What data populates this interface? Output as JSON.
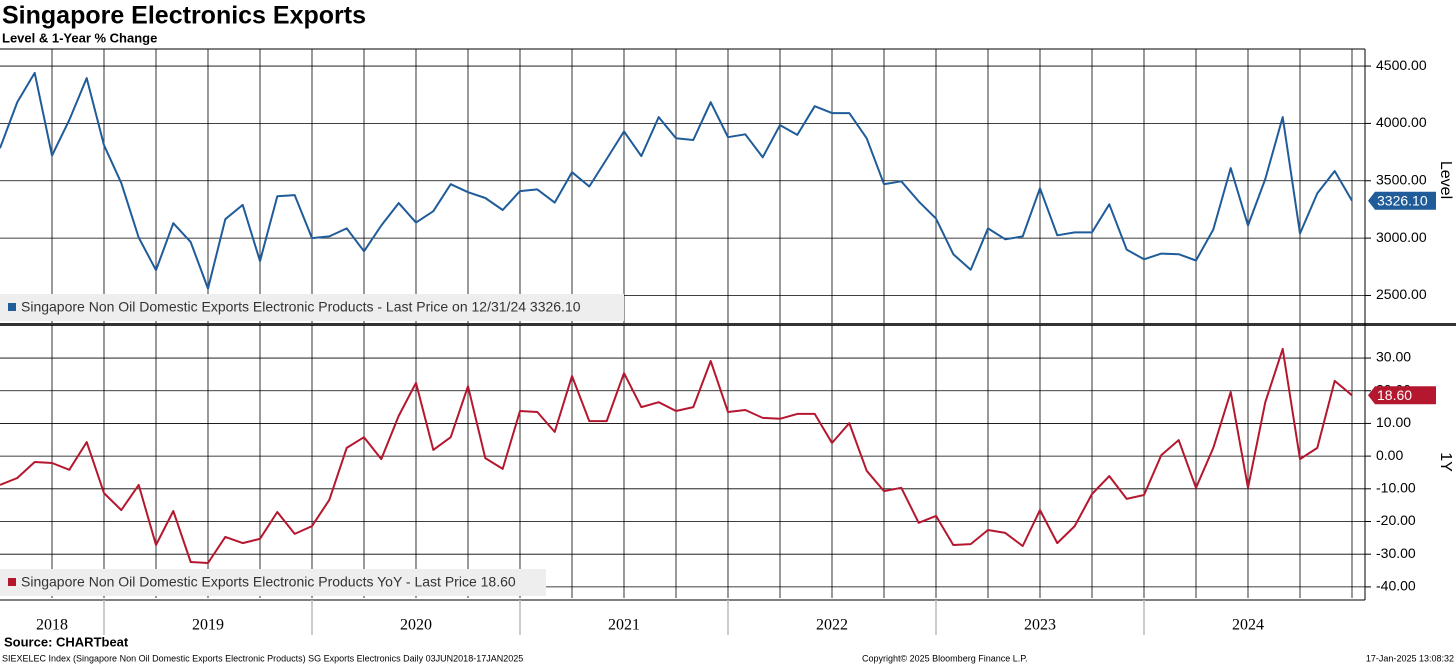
{
  "title": "Singapore Electronics Exports",
  "subtitle": "Level & 1-Year % Change",
  "source": "Source: CHARTbeat",
  "footer_left": "SIEXELEC Index (Singapore Non Oil Domestic Exports Electronic Products) SG Exports Electronics  Daily 03JUN2018-17JAN2025",
  "footer_center": "Copyright© 2025 Bloomberg Finance L.P.",
  "footer_right": "17-Jan-2025 13:08:32",
  "year_labels": [
    "2018",
    "2019",
    "2020",
    "2021",
    "2022",
    "2023",
    "2024"
  ],
  "chart_data": [
    {
      "type": "line",
      "axis_label": "Level",
      "ylim": [
        2260,
        4640
      ],
      "yticks": [
        {
          "value": 2500,
          "label": "2500.00"
        },
        {
          "value": 3000,
          "label": "3000.00"
        },
        {
          "value": 3500,
          "label": "3500.00"
        },
        {
          "value": 4000,
          "label": "4000.00"
        },
        {
          "value": 4500,
          "label": "4500.00"
        }
      ],
      "grid": true,
      "x": [
        "2018-06",
        "2018-07",
        "2018-08",
        "2018-09",
        "2018-10",
        "2018-11",
        "2018-12",
        "2019-01",
        "2019-02",
        "2019-03",
        "2019-04",
        "2019-05",
        "2019-06",
        "2019-07",
        "2019-08",
        "2019-09",
        "2019-10",
        "2019-11",
        "2019-12",
        "2020-01",
        "2020-02",
        "2020-03",
        "2020-04",
        "2020-05",
        "2020-06",
        "2020-07",
        "2020-08",
        "2020-09",
        "2020-10",
        "2020-11",
        "2020-12",
        "2021-01",
        "2021-02",
        "2021-03",
        "2021-04",
        "2021-05",
        "2021-06",
        "2021-07",
        "2021-08",
        "2021-09",
        "2021-10",
        "2021-11",
        "2021-12",
        "2022-01",
        "2022-02",
        "2022-03",
        "2022-04",
        "2022-05",
        "2022-06",
        "2022-07",
        "2022-08",
        "2022-09",
        "2022-10",
        "2022-11",
        "2022-12",
        "2023-01",
        "2023-02",
        "2023-03",
        "2023-04",
        "2023-05",
        "2023-06",
        "2023-07",
        "2023-08",
        "2023-09",
        "2023-10",
        "2023-11",
        "2023-12",
        "2024-01",
        "2024-02",
        "2024-03",
        "2024-04",
        "2024-05",
        "2024-06",
        "2024-07",
        "2024-08",
        "2024-09",
        "2024-10",
        "2024-11",
        "2024-12"
      ],
      "series": [
        {
          "name": "Singapore Non Oil Domestic Exports Electronic Products - Last Price on 12/31/24 3326.10",
          "color": "#1f5c99",
          "values": [
            3784,
            4186,
            4440,
            3720,
            4030,
            4395,
            3810,
            3480,
            3005,
            2720,
            3130,
            2965,
            2560,
            3165,
            3290,
            2800,
            3365,
            3375,
            3000,
            3015,
            3085,
            2885,
            3110,
            3305,
            3135,
            3235,
            3470,
            3400,
            3350,
            3245,
            3410,
            3425,
            3310,
            3575,
            3450,
            3690,
            3930,
            3715,
            4055,
            3870,
            3855,
            4185,
            3880,
            3905,
            3705,
            3985,
            3900,
            4150,
            4090,
            4090,
            3870,
            3470,
            3495,
            3320,
            3170,
            2860,
            2725,
            3085,
            2990,
            3015,
            3435,
            3025,
            3050,
            3050,
            3295,
            2900,
            2815,
            2865,
            2860,
            2805,
            3075,
            3610,
            3110,
            3515,
            4055,
            3040,
            3390,
            3585,
            3326.1
          ],
          "value_labels": [
            null,
            null,
            null,
            null,
            null,
            null,
            null,
            null,
            null,
            null,
            null,
            null,
            null,
            null,
            null,
            null,
            null,
            null,
            null,
            null,
            null,
            null,
            null,
            null,
            null,
            null,
            null,
            null,
            null,
            null,
            null,
            null,
            null,
            null,
            null,
            null,
            null,
            null,
            null,
            null,
            null,
            null,
            null,
            null,
            null,
            null,
            null,
            null,
            null,
            null,
            null,
            null,
            null,
            null,
            null,
            null,
            null,
            null,
            null,
            null,
            null,
            null,
            null,
            null,
            null,
            null,
            null,
            null,
            null,
            null,
            null,
            null,
            null,
            null,
            null,
            null,
            null,
            null,
            "3326.10"
          ]
        }
      ]
    },
    {
      "type": "line",
      "axis_label": "1Y",
      "ylim": [
        -43.4,
        39.8
      ],
      "yticks": [
        {
          "value": -40,
          "label": "-40.00"
        },
        {
          "value": -30,
          "label": "-30.00"
        },
        {
          "value": -20,
          "label": "-20.00"
        },
        {
          "value": -10,
          "label": "-10.00"
        },
        {
          "value": 0,
          "label": "0.00"
        },
        {
          "value": 10,
          "label": "10.00"
        },
        {
          "value": 20,
          "label": "20.00"
        },
        {
          "value": 30,
          "label": "30.00"
        }
      ],
      "grid": true,
      "x": [
        "2018-06",
        "2018-07",
        "2018-08",
        "2018-09",
        "2018-10",
        "2018-11",
        "2018-12",
        "2019-01",
        "2019-02",
        "2019-03",
        "2019-04",
        "2019-05",
        "2019-06",
        "2019-07",
        "2019-08",
        "2019-09",
        "2019-10",
        "2019-11",
        "2019-12",
        "2020-01",
        "2020-02",
        "2020-03",
        "2020-04",
        "2020-05",
        "2020-06",
        "2020-07",
        "2020-08",
        "2020-09",
        "2020-10",
        "2020-11",
        "2020-12",
        "2021-01",
        "2021-02",
        "2021-03",
        "2021-04",
        "2021-05",
        "2021-06",
        "2021-07",
        "2021-08",
        "2021-09",
        "2021-10",
        "2021-11",
        "2021-12",
        "2022-01",
        "2022-02",
        "2022-03",
        "2022-04",
        "2022-05",
        "2022-06",
        "2022-07",
        "2022-08",
        "2022-09",
        "2022-10",
        "2022-11",
        "2022-12",
        "2023-01",
        "2023-02",
        "2023-03",
        "2023-04",
        "2023-05",
        "2023-06",
        "2023-07",
        "2023-08",
        "2023-09",
        "2023-10",
        "2023-11",
        "2023-12",
        "2024-01",
        "2024-02",
        "2024-03",
        "2024-04",
        "2024-05",
        "2024-06",
        "2024-07",
        "2024-08",
        "2024-09",
        "2024-10",
        "2024-11",
        "2024-12"
      ],
      "series": [
        {
          "name": "Singapore Non Oil Domestic Exports Electronic Products YoY - Last Price 18.60",
          "color": "#b5172f",
          "values": [
            -8.8,
            -6.7,
            -1.8,
            -2.1,
            -4.2,
            4.3,
            -11.3,
            -16.5,
            -8.8,
            -27.2,
            -16.8,
            -32.4,
            -32.7,
            -24.7,
            -26.6,
            -25.3,
            -17.1,
            -23.8,
            -21.4,
            -13.4,
            2.5,
            5.8,
            -0.9,
            12.3,
            22.4,
            1.9,
            5.8,
            21.4,
            -0.6,
            -3.9,
            13.8,
            13.5,
            7.4,
            24.5,
            10.7,
            10.7,
            25.4,
            15.0,
            16.5,
            13.8,
            15.0,
            29.1,
            13.5,
            14.1,
            11.7,
            11.4,
            12.9,
            12.9,
            4.0,
            10.1,
            -4.5,
            -10.7,
            -9.7,
            -20.4,
            -18.3,
            -27.2,
            -26.9,
            -22.6,
            -23.5,
            -27.5,
            -16.5,
            -26.6,
            -21.4,
            -11.6,
            -6.1,
            -13.1,
            -11.9,
            0.3,
            4.9,
            -9.7,
            2.5,
            19.6,
            -9.7,
            16.5,
            32.8,
            -0.9,
            2.5,
            23.0,
            18.6
          ],
          "value_labels": [
            null,
            null,
            null,
            null,
            null,
            null,
            null,
            null,
            null,
            null,
            null,
            null,
            null,
            null,
            null,
            null,
            null,
            null,
            null,
            null,
            null,
            null,
            null,
            null,
            null,
            null,
            null,
            null,
            null,
            null,
            null,
            null,
            null,
            null,
            null,
            null,
            null,
            null,
            null,
            null,
            null,
            null,
            null,
            null,
            null,
            null,
            null,
            null,
            null,
            null,
            null,
            null,
            null,
            null,
            null,
            null,
            null,
            null,
            null,
            null,
            null,
            null,
            null,
            null,
            null,
            null,
            null,
            null,
            null,
            null,
            null,
            null,
            null,
            null,
            null,
            null,
            null,
            null,
            "18.60"
          ]
        }
      ]
    }
  ]
}
